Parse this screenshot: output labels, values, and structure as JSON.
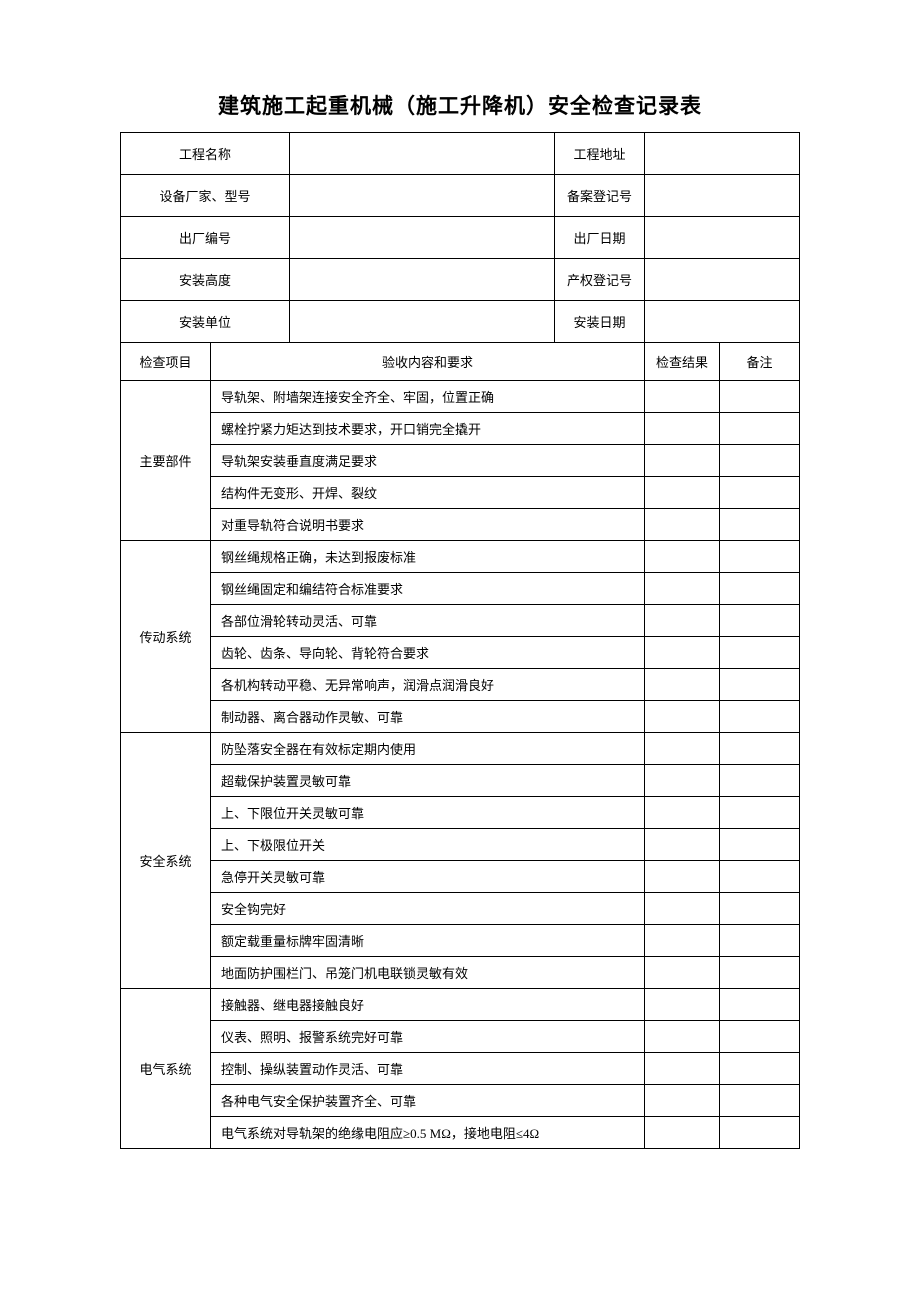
{
  "title": "建筑施工起重机械（施工升降机）安全检查记录表",
  "header": {
    "row1": {
      "label1": "工程名称",
      "label2": "工程地址"
    },
    "row2": {
      "label1": "设备厂家、型号",
      "label2": "备案登记号"
    },
    "row3": {
      "label1": "出厂编号",
      "label2": "出厂日期"
    },
    "row4": {
      "label1": "安装高度",
      "label2": "产权登记号"
    },
    "row5": {
      "label1": "安装单位",
      "label2": "安装日期"
    }
  },
  "columns": {
    "c1": "检查项目",
    "c2": "验收内容和要求",
    "c3": "检查结果",
    "c4": "备注"
  },
  "sections": [
    {
      "name": "主要部件",
      "items": [
        "导轨架、附墙架连接安全齐全、牢固，位置正确",
        "螺栓拧紧力矩达到技术要求，开口销完全撬开",
        "导轨架安装垂直度满足要求",
        "结构件无变形、开焊、裂纹",
        "对重导轨符合说明书要求"
      ]
    },
    {
      "name": "传动系统",
      "items": [
        "钢丝绳规格正确，未达到报废标准",
        "钢丝绳固定和编结符合标准要求",
        "各部位滑轮转动灵活、可靠",
        "齿轮、齿条、导向轮、背轮符合要求",
        "各机构转动平稳、无异常响声，润滑点润滑良好",
        "制动器、离合器动作灵敏、可靠"
      ]
    },
    {
      "name": "安全系统",
      "items": [
        "防坠落安全器在有效标定期内使用",
        "超载保护装置灵敏可靠",
        "上、下限位开关灵敏可靠",
        "上、下极限位开关",
        "急停开关灵敏可靠",
        "安全钩完好",
        "额定载重量标牌牢固清晰",
        "地面防护围栏门、吊笼门机电联锁灵敏有效"
      ]
    },
    {
      "name": "电气系统",
      "items": [
        "接触器、继电器接触良好",
        "仪表、照明、报警系统完好可靠",
        "控制、操纵装置动作灵活、可靠",
        "各种电气安全保护装置齐全、可靠",
        "电气系统对导轨架的绝缘电阻应≥0.5 MΩ，接地电阻≤4Ω"
      ]
    }
  ]
}
